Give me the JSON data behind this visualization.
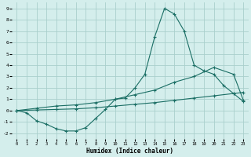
{
  "xlabel": "Humidex (Indice chaleur)",
  "xlim": [
    -0.5,
    23.5
  ],
  "ylim": [
    -2.5,
    9.5
  ],
  "xticks": [
    0,
    1,
    2,
    3,
    4,
    5,
    6,
    7,
    8,
    9,
    10,
    11,
    12,
    13,
    14,
    15,
    16,
    17,
    18,
    19,
    20,
    21,
    22,
    23
  ],
  "yticks": [
    -2,
    -1,
    0,
    1,
    2,
    3,
    4,
    5,
    6,
    7,
    8,
    9
  ],
  "bg_color": "#d4eeec",
  "grid_color": "#aacfcc",
  "line_color": "#1a6e64",
  "line1_x": [
    0,
    1,
    2,
    3,
    4,
    5,
    6,
    7,
    8,
    9,
    10,
    11,
    12,
    13,
    14,
    15,
    16,
    17,
    18,
    19,
    20,
    21,
    22,
    23
  ],
  "line1_y": [
    0.0,
    -0.2,
    -0.9,
    -1.2,
    -1.6,
    -1.8,
    -1.8,
    -1.5,
    -0.7,
    0.1,
    1.0,
    1.1,
    2.0,
    3.2,
    6.5,
    9.0,
    8.5,
    7.0,
    4.0,
    3.5,
    3.2,
    2.2,
    1.5,
    0.8
  ],
  "line2_x": [
    0,
    2,
    4,
    6,
    8,
    10,
    12,
    14,
    16,
    18,
    20,
    22,
    23
  ],
  "line2_y": [
    0.0,
    0.2,
    0.4,
    0.5,
    0.7,
    1.0,
    1.4,
    1.8,
    2.5,
    3.0,
    3.8,
    3.2,
    0.9
  ],
  "line3_x": [
    0,
    2,
    4,
    6,
    8,
    10,
    12,
    14,
    16,
    18,
    20,
    22,
    23
  ],
  "line3_y": [
    0.0,
    0.05,
    0.1,
    0.15,
    0.25,
    0.4,
    0.55,
    0.7,
    0.9,
    1.1,
    1.3,
    1.5,
    1.6
  ]
}
